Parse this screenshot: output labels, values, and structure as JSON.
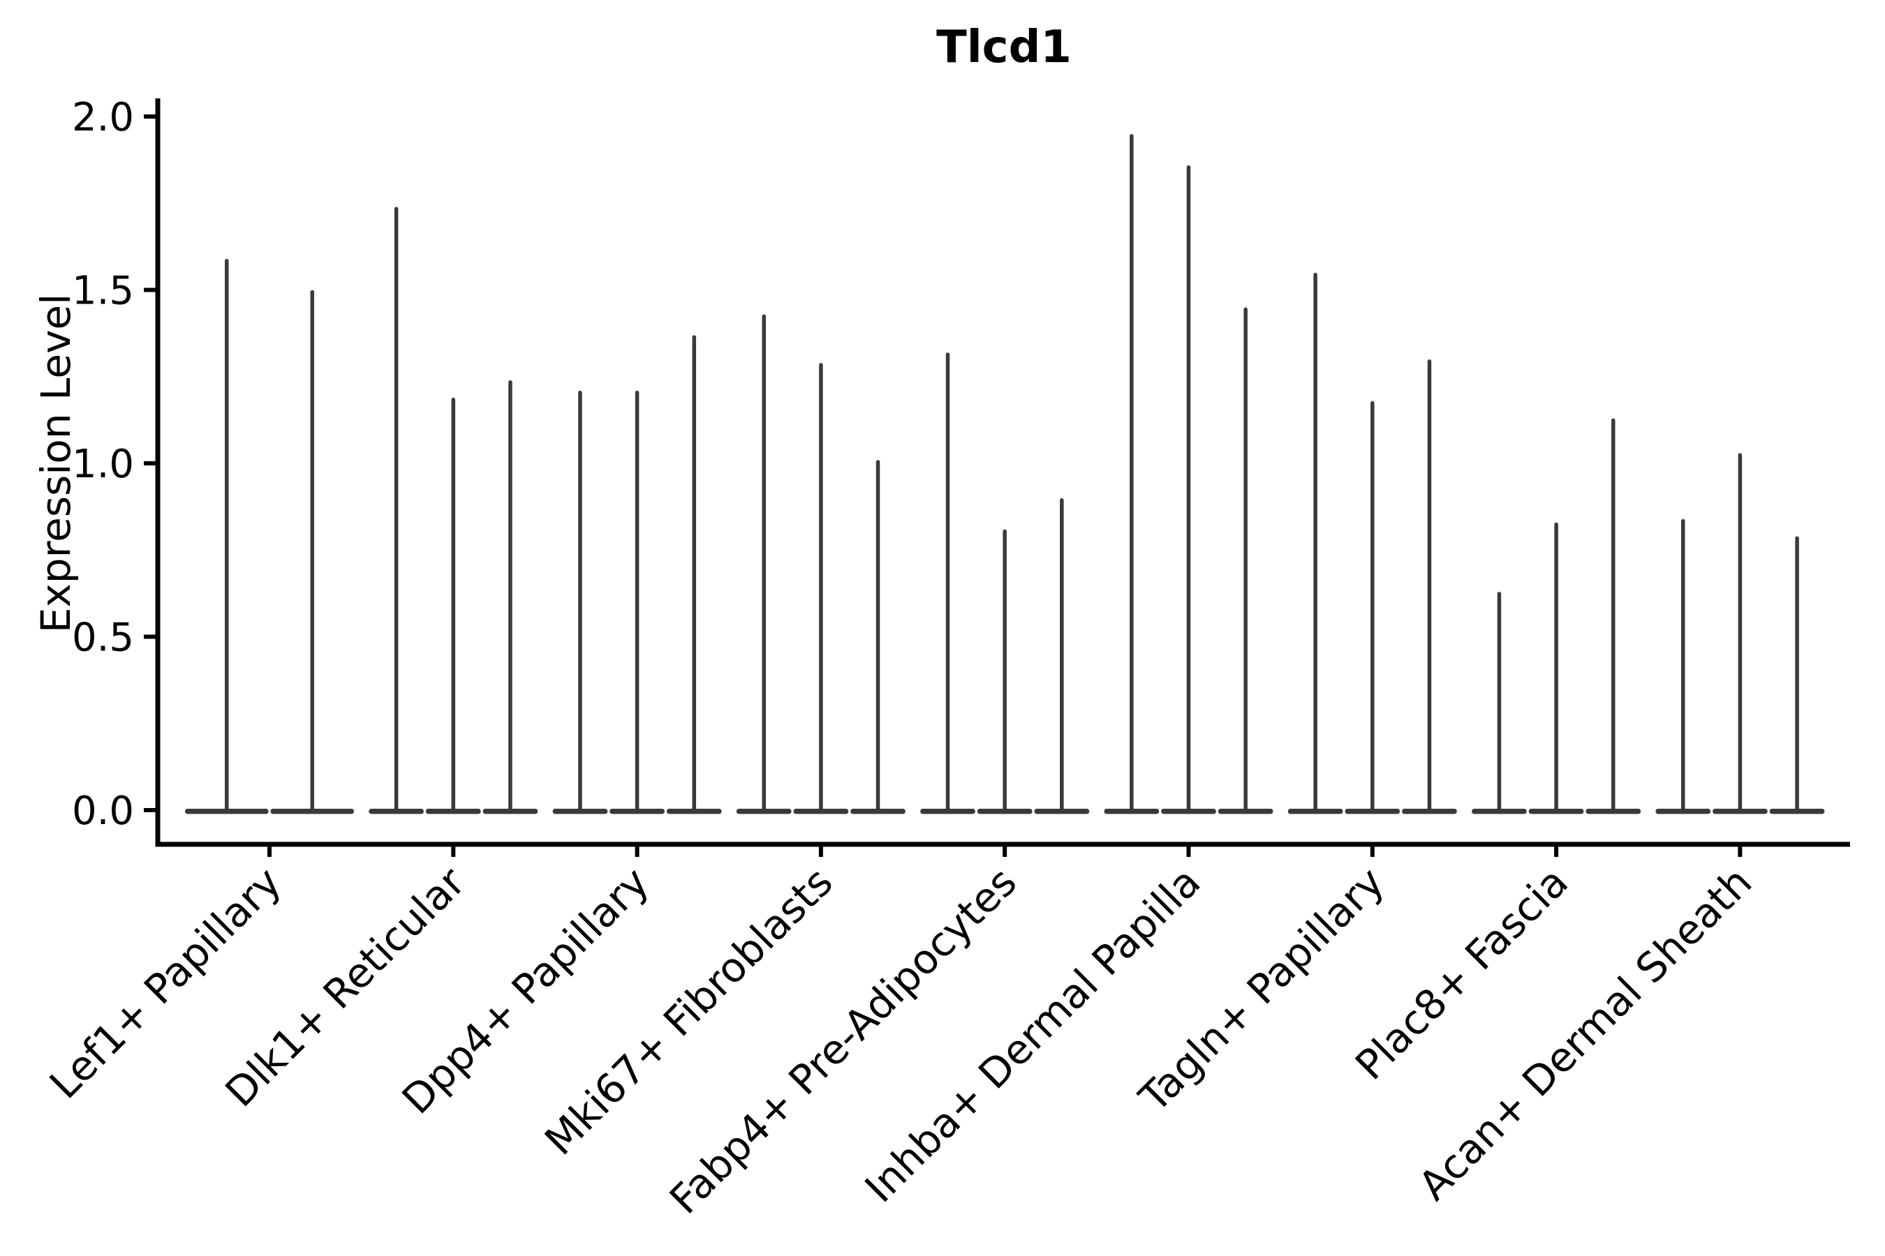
{
  "title": "Tlcd1",
  "y_axis": {
    "label": "Expression Level",
    "tick_labels": [
      "0.0",
      "0.5",
      "1.0",
      "1.5",
      "2.0"
    ]
  },
  "x_axis": {
    "categories": [
      "Lef1+ Papillary",
      "Dlk1+ Reticular",
      "Dpp4+ Papillary",
      "Mki67+ Fibroblasts",
      "Fabp4+ Pre-Adipocytes",
      "Inhba+ Dermal Papilla",
      "Tagln+ Papillary",
      "Plac8+ Fascia",
      "Acan+ Dermal Sheath"
    ]
  },
  "chart_data": {
    "type": "violin",
    "title": "Tlcd1",
    "xlabel": "",
    "ylabel": "Expression Level",
    "ylim": [
      0.0,
      2.05
    ],
    "yticks": [
      0.0,
      0.5,
      1.0,
      1.5,
      2.0
    ],
    "grid": false,
    "legend": "none",
    "colors": {
      "violin": "#3a3a3a",
      "axis": "#000000",
      "text": "#000000",
      "background": "#ffffff"
    },
    "shape_note": "Each violin's mass sits at 0 (flat disc on the baseline) with a single thin spike rising to the listed maximum expression value.",
    "groups": [
      {
        "category": "Lef1+ Papillary",
        "violin_maxima": [
          1.59,
          1.5
        ]
      },
      {
        "category": "Dlk1+ Reticular",
        "violin_maxima": [
          1.74,
          1.19,
          1.24
        ]
      },
      {
        "category": "Dpp4+ Papillary",
        "violin_maxima": [
          1.21,
          1.21,
          1.37
        ]
      },
      {
        "category": "Mki67+ Fibroblasts",
        "violin_maxima": [
          1.43,
          1.29,
          1.01
        ]
      },
      {
        "category": "Fabp4+ Pre-Adipocytes",
        "violin_maxima": [
          1.32,
          0.81,
          0.9
        ]
      },
      {
        "category": "Inhba+ Dermal Papilla",
        "violin_maxima": [
          1.95,
          1.86,
          1.45
        ]
      },
      {
        "category": "Tagln+ Papillary",
        "violin_maxima": [
          1.55,
          1.18,
          1.3
        ]
      },
      {
        "category": "Plac8+ Fascia",
        "violin_maxima": [
          0.63,
          0.83,
          1.13
        ]
      },
      {
        "category": "Acan+ Dermal Sheath",
        "violin_maxima": [
          0.84,
          1.03,
          0.79
        ]
      }
    ]
  }
}
